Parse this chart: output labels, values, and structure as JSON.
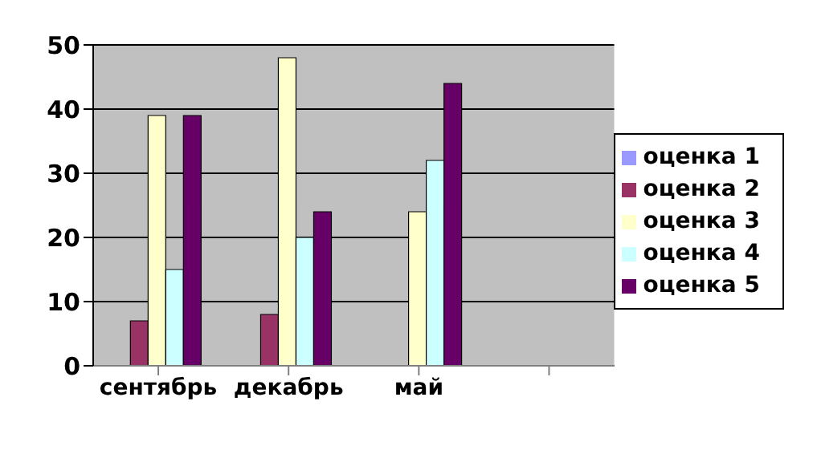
{
  "chart_data": {
    "type": "bar",
    "categories": [
      "сентябрь",
      "декабрь",
      "май",
      null
    ],
    "series": [
      {
        "name": "оценка 1",
        "color": "#9999ff",
        "values": [
          0,
          0,
          0,
          null
        ]
      },
      {
        "name": "оценка 2",
        "color": "#993366",
        "values": [
          7,
          8,
          0,
          null
        ]
      },
      {
        "name": "оценка 3",
        "color": "#ffffcc",
        "values": [
          39,
          48,
          24,
          null
        ]
      },
      {
        "name": "оценка 4",
        "color": "#ccffff",
        "values": [
          15,
          20,
          32,
          null
        ]
      },
      {
        "name": "оценка 5",
        "color": "#660066",
        "values": [
          39,
          24,
          44,
          null
        ]
      }
    ],
    "ylim": [
      0,
      50
    ],
    "yticks": [
      0,
      10,
      20,
      30,
      40,
      50
    ],
    "grid": "y",
    "legend": "right"
  }
}
